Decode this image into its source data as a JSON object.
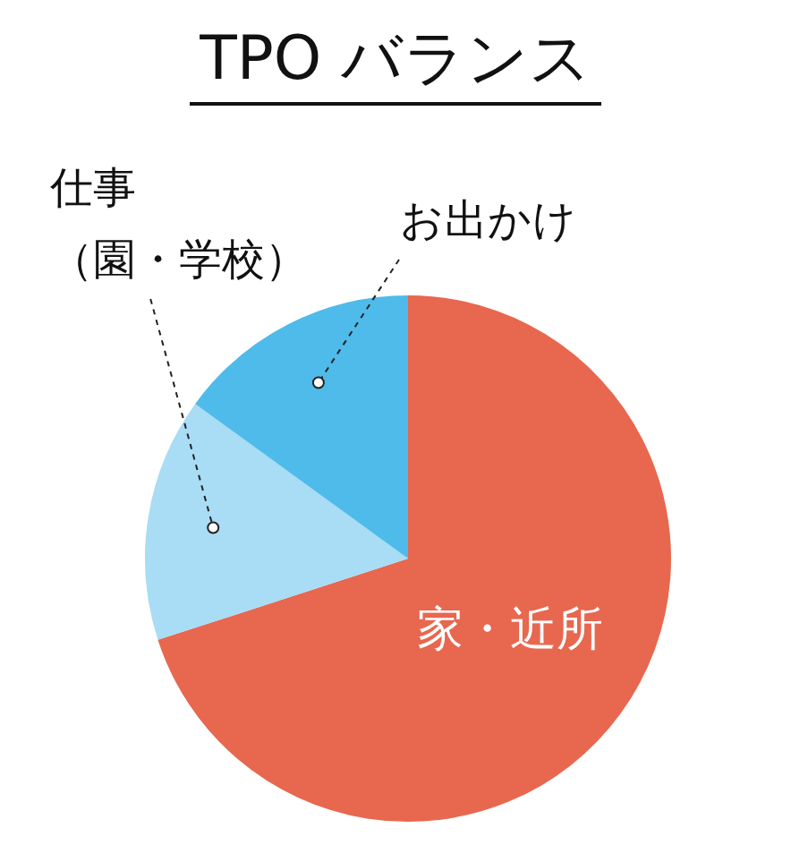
{
  "chart_data": {
    "type": "pie",
    "title": "TPO バランス",
    "categories": [
      "家・近所",
      "仕事（園・学校）",
      "お出かけ"
    ],
    "values": [
      70,
      15,
      15
    ],
    "colors": [
      "#e8674f",
      "#a9dcf5",
      "#4fbbea"
    ],
    "legend": false
  }
}
